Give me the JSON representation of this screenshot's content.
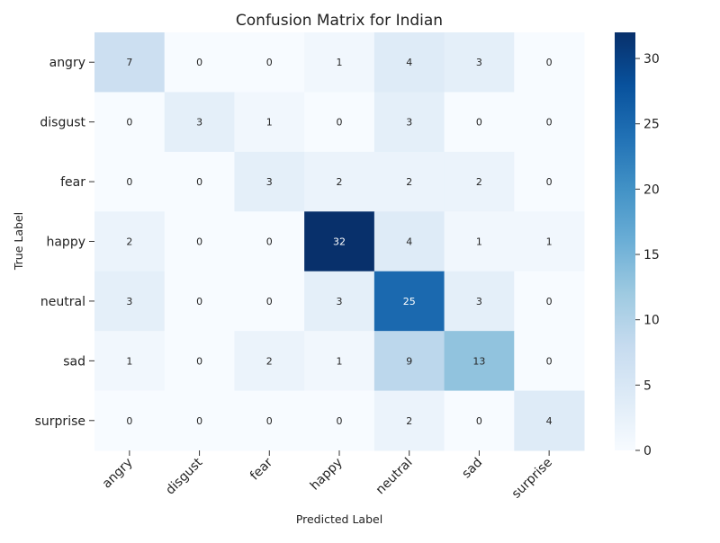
{
  "chart_data": {
    "type": "heatmap",
    "title": "Confusion Matrix for Indian",
    "xlabel": "Predicted Label",
    "ylabel": "True Label",
    "x_categories": [
      "angry",
      "disgust",
      "fear",
      "happy",
      "neutral",
      "sad",
      "surprise"
    ],
    "y_categories": [
      "angry",
      "disgust",
      "fear",
      "happy",
      "neutral",
      "sad",
      "surprise"
    ],
    "values": [
      [
        7,
        0,
        0,
        1,
        4,
        3,
        0
      ],
      [
        0,
        3,
        1,
        0,
        3,
        0,
        0
      ],
      [
        0,
        0,
        3,
        2,
        2,
        2,
        0
      ],
      [
        2,
        0,
        0,
        32,
        4,
        1,
        1
      ],
      [
        3,
        0,
        0,
        3,
        25,
        3,
        0
      ],
      [
        1,
        0,
        2,
        1,
        9,
        13,
        0
      ],
      [
        0,
        0,
        0,
        0,
        2,
        0,
        4
      ]
    ],
    "colorbar": {
      "min": 0,
      "max": 32,
      "ticks": [
        0,
        5,
        10,
        15,
        20,
        25,
        30
      ],
      "colormap": "Blues",
      "low_color": "#f7fbff",
      "high_color": "#08306b"
    },
    "x_tick_rotation_deg": 45
  }
}
